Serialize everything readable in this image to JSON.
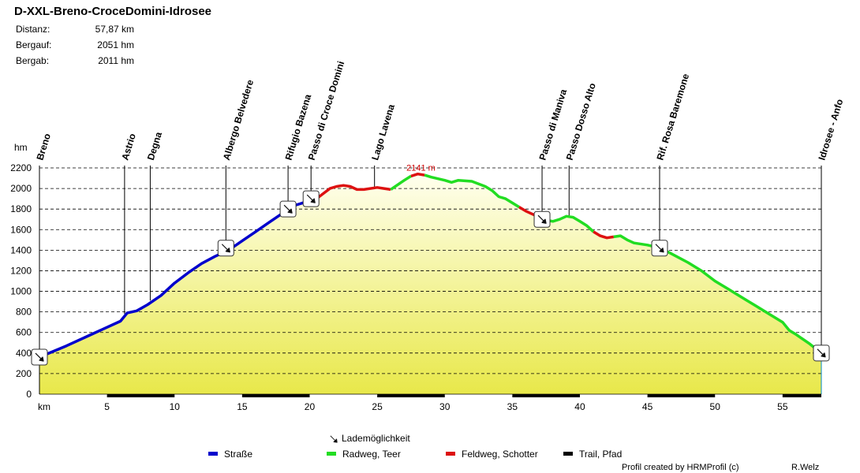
{
  "header": {
    "title": "D-XXL-Breno-CroceDomini-Idrosee",
    "stats": [
      {
        "label": "Distanz:",
        "value": "57,87 km"
      },
      {
        "label": "Bergauf:",
        "value": "2051 hm"
      },
      {
        "label": "Bergab:",
        "value": "2011 hm"
      }
    ]
  },
  "chart_data": {
    "type": "area",
    "title": "D-XXL-Breno-CroceDomini-Idrosee",
    "xlabel": "km",
    "ylabel": "hm",
    "xlim": [
      0,
      57.87
    ],
    "ylim": [
      0,
      2200
    ],
    "x_ticks": [
      5,
      10,
      15,
      20,
      25,
      30,
      35,
      40,
      45,
      50,
      55
    ],
    "y_ticks": [
      0,
      200,
      400,
      600,
      800,
      1000,
      1200,
      1400,
      1600,
      1800,
      2000,
      2200
    ],
    "grid": "horizontal dashed",
    "max_label": "2141 m",
    "max_point": {
      "km": 28.0,
      "elevation": 2141
    },
    "profile": [
      [
        0,
        360
      ],
      [
        2,
        470
      ],
      [
        4,
        590
      ],
      [
        6,
        710
      ],
      [
        6.5,
        790
      ],
      [
        7.2,
        810
      ],
      [
        8,
        870
      ],
      [
        9,
        960
      ],
      [
        10,
        1080
      ],
      [
        11,
        1180
      ],
      [
        12,
        1270
      ],
      [
        13,
        1340
      ],
      [
        14,
        1400
      ],
      [
        15,
        1490
      ],
      [
        16,
        1580
      ],
      [
        17,
        1670
      ],
      [
        18,
        1760
      ],
      [
        19,
        1840
      ],
      [
        20,
        1880
      ],
      [
        20.5,
        1900
      ],
      [
        21,
        1950
      ],
      [
        21.5,
        2000
      ],
      [
        22,
        2020
      ],
      [
        22.5,
        2030
      ],
      [
        23,
        2020
      ],
      [
        23.5,
        1990
      ],
      [
        24,
        1990
      ],
      [
        25,
        2010
      ],
      [
        25.5,
        2000
      ],
      [
        26,
        1990
      ],
      [
        27,
        2080
      ],
      [
        27.5,
        2120
      ],
      [
        28,
        2141
      ],
      [
        28.5,
        2130
      ],
      [
        29,
        2110
      ],
      [
        30,
        2080
      ],
      [
        30.5,
        2060
      ],
      [
        31,
        2080
      ],
      [
        32,
        2070
      ],
      [
        33,
        2020
      ],
      [
        33.5,
        1980
      ],
      [
        34,
        1920
      ],
      [
        34.5,
        1900
      ],
      [
        35,
        1860
      ],
      [
        35.5,
        1820
      ],
      [
        36,
        1780
      ],
      [
        36.5,
        1750
      ],
      [
        37,
        1720
      ],
      [
        37.3,
        1700
      ],
      [
        38,
        1680
      ],
      [
        38.5,
        1700
      ],
      [
        39,
        1730
      ],
      [
        39.5,
        1720
      ],
      [
        40,
        1680
      ],
      [
        40.5,
        1640
      ],
      [
        41,
        1580
      ],
      [
        41.5,
        1540
      ],
      [
        42,
        1520
      ],
      [
        42.5,
        1530
      ],
      [
        43,
        1540
      ],
      [
        43.5,
        1500
      ],
      [
        44,
        1470
      ],
      [
        45,
        1450
      ],
      [
        46,
        1420
      ],
      [
        47,
        1350
      ],
      [
        48,
        1280
      ],
      [
        49,
        1200
      ],
      [
        50,
        1100
      ],
      [
        51,
        1020
      ],
      [
        52,
        940
      ],
      [
        53,
        860
      ],
      [
        54,
        780
      ],
      [
        55,
        700
      ],
      [
        55.5,
        620
      ],
      [
        56,
        580
      ],
      [
        57,
        490
      ],
      [
        57.87,
        400
      ]
    ],
    "surface_segments": [
      {
        "from": 0,
        "to": 20.5,
        "type": "Straße"
      },
      {
        "from": 20.5,
        "to": 26,
        "type": "Feldweg, Schotter"
      },
      {
        "from": 26,
        "to": 27.5,
        "type": "Radweg, Teer"
      },
      {
        "from": 27.5,
        "to": 28.5,
        "type": "Feldweg, Schotter"
      },
      {
        "from": 28.5,
        "to": 35.5,
        "type": "Radweg, Teer"
      },
      {
        "from": 35.5,
        "to": 37.8,
        "type": "Feldweg, Schotter"
      },
      {
        "from": 37.8,
        "to": 41,
        "type": "Radweg, Teer"
      },
      {
        "from": 41,
        "to": 42.5,
        "type": "Feldweg, Schotter"
      },
      {
        "from": 42.5,
        "to": 57.87,
        "type": "Radweg, Teer"
      }
    ],
    "trail_bar": [
      {
        "from": 5,
        "to": 10
      },
      {
        "from": 15,
        "to": 20
      },
      {
        "from": 25,
        "to": 30
      },
      {
        "from": 35,
        "to": 40
      },
      {
        "from": 45,
        "to": 50
      },
      {
        "from": 55,
        "to": 57.87
      }
    ],
    "waypoints": [
      {
        "name": "Breno",
        "km": 0,
        "elevation": 360,
        "charging": true
      },
      {
        "name": "Astrio",
        "km": 6.3,
        "elevation": 780,
        "charging": false
      },
      {
        "name": "Degna",
        "km": 8.2,
        "elevation": 910,
        "charging": false
      },
      {
        "name": "Albergo Belvedere",
        "km": 13.8,
        "elevation": 1420,
        "charging": true
      },
      {
        "name": "Rifugio Bazena",
        "km": 18.4,
        "elevation": 1800,
        "charging": true
      },
      {
        "name": "Passo di Croce Domini",
        "km": 20.1,
        "elevation": 1900,
        "charging": true
      },
      {
        "name": "Lago Lavena",
        "km": 24.8,
        "elevation": 2000,
        "charging": false
      },
      {
        "name": "Passo di Maniva",
        "km": 37.2,
        "elevation": 1700,
        "charging": true
      },
      {
        "name": "Passo Dosso Alto",
        "km": 39.2,
        "elevation": 1730,
        "charging": false
      },
      {
        "name": "Rif. Rosa Baremone",
        "km": 45.9,
        "elevation": 1420,
        "charging": true
      },
      {
        "name": "Idrosee - Anfo",
        "km": 57.87,
        "elevation": 400,
        "charging": true
      }
    ]
  },
  "legend": {
    "charging": "Lademöglichkeit",
    "items": [
      {
        "label": "Straße",
        "color": "#0000cc"
      },
      {
        "label": "Radweg, Teer",
        "color": "#22dd22"
      },
      {
        "label": "Feldweg, Schotter",
        "color": "#dd1111"
      },
      {
        "label": "Trail, Pfad",
        "color": "#000000"
      }
    ]
  },
  "footer": {
    "credit": "Profil created by HRMProfil (c)",
    "author": "R.Welz"
  }
}
